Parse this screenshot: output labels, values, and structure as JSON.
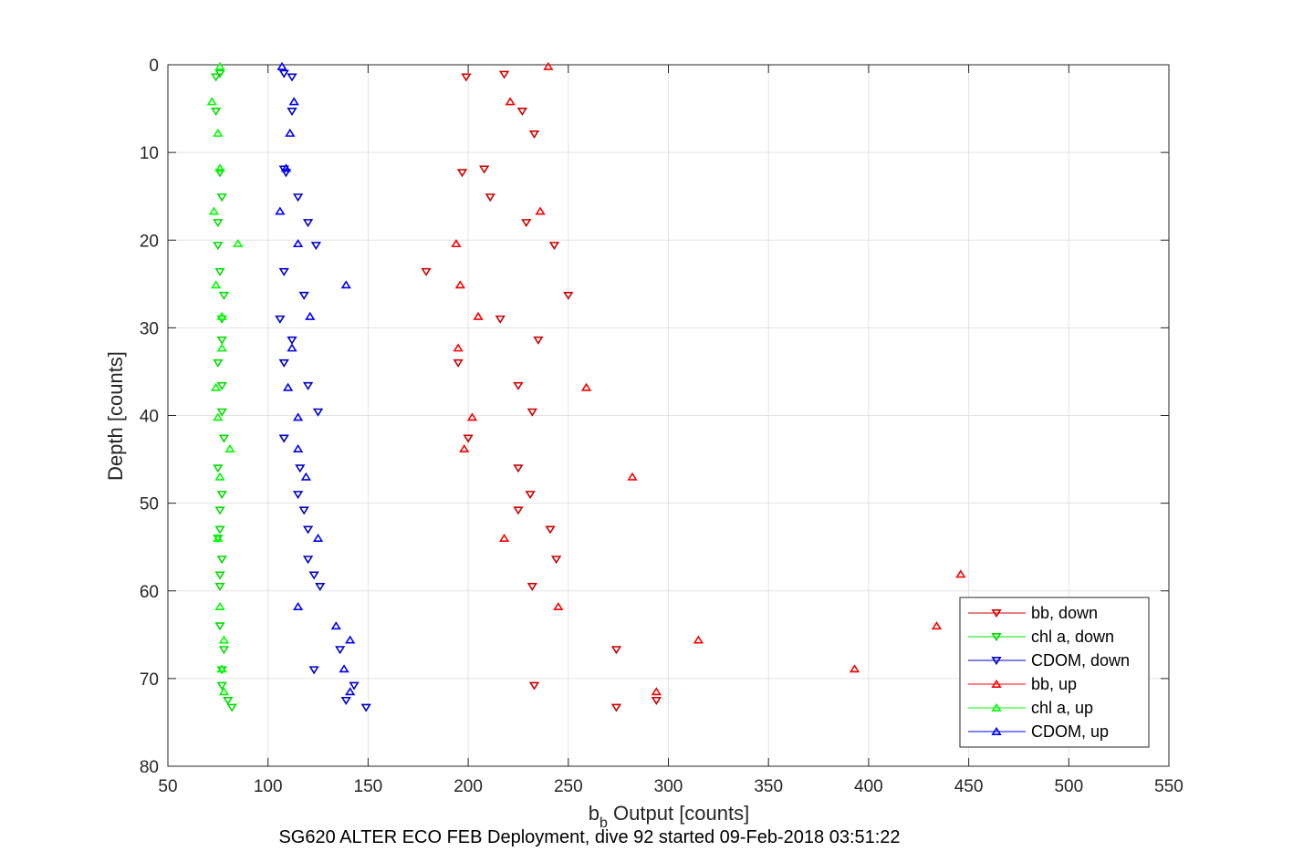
{
  "chart_data": {
    "type": "scatter",
    "title": "",
    "caption": "SG620 ALTER ECO FEB Deployment, dive 92 started 09-Feb-2018 03:51:22",
    "xlabel": {
      "main": "b",
      "sub": "b",
      "rest": " Output [counts]"
    },
    "ylabel": "Depth [counts]",
    "xlim": [
      50,
      550
    ],
    "ylim": [
      0,
      80
    ],
    "y_reversed": true,
    "grid": true,
    "legend_position": "bottom-right",
    "xticks": [
      "50",
      "100",
      "150",
      "200",
      "250",
      "300",
      "350",
      "400",
      "450",
      "500",
      "550"
    ],
    "yticks": [
      "0",
      "10",
      "20",
      "30",
      "40",
      "50",
      "60",
      "70",
      "80"
    ],
    "series": [
      {
        "name": "bb, down",
        "marker": "triangle-down",
        "color": "#d00000",
        "points": [
          [
            218,
            1.1
          ],
          [
            199,
            1.4
          ],
          [
            227,
            5.3
          ],
          [
            233,
            7.9
          ],
          [
            208,
            11.9
          ],
          [
            197,
            12.3
          ],
          [
            211,
            15.1
          ],
          [
            229,
            18
          ],
          [
            243,
            20.6
          ],
          [
            179,
            23.6
          ],
          [
            250,
            26.3
          ],
          [
            216,
            29
          ],
          [
            235,
            31.4
          ],
          [
            195,
            34
          ],
          [
            225,
            36.6
          ],
          [
            232,
            39.6
          ],
          [
            200,
            42.6
          ],
          [
            225,
            46
          ],
          [
            231,
            49
          ],
          [
            225,
            50.8
          ],
          [
            241,
            53
          ],
          [
            244,
            56.4
          ],
          [
            232,
            59.5
          ],
          [
            274,
            66.7
          ],
          [
            233,
            70.8
          ],
          [
            294,
            72.5
          ],
          [
            274,
            73.3
          ]
        ]
      },
      {
        "name": "chl a, down",
        "marker": "triangle-down",
        "color": "#00dd00",
        "points": [
          [
            76,
            1
          ],
          [
            74,
            1.4
          ],
          [
            74,
            5.3
          ],
          [
            76,
            12.3
          ],
          [
            77,
            15.1
          ],
          [
            75,
            18
          ],
          [
            75,
            20.6
          ],
          [
            76,
            23.6
          ],
          [
            78,
            26.3
          ],
          [
            77,
            29
          ],
          [
            77,
            31.4
          ],
          [
            75,
            34
          ],
          [
            77,
            36.6
          ],
          [
            77,
            39.6
          ],
          [
            78,
            42.6
          ],
          [
            75,
            46
          ],
          [
            77,
            49
          ],
          [
            76,
            50.8
          ],
          [
            76,
            53
          ],
          [
            75,
            54
          ],
          [
            77,
            56.4
          ],
          [
            76,
            58.2
          ],
          [
            76,
            59.5
          ],
          [
            76,
            64
          ],
          [
            78,
            66.7
          ],
          [
            77,
            69
          ],
          [
            77,
            70.8
          ],
          [
            80,
            72.5
          ],
          [
            82,
            73.3
          ]
        ]
      },
      {
        "name": "CDOM, down",
        "marker": "triangle-down",
        "color": "#0000cc",
        "points": [
          [
            108,
            1
          ],
          [
            112,
            1.4
          ],
          [
            112,
            5.3
          ],
          [
            108,
            11.9
          ],
          [
            109,
            12.3
          ],
          [
            115,
            15.1
          ],
          [
            120,
            18
          ],
          [
            124,
            20.6
          ],
          [
            108,
            23.6
          ],
          [
            118,
            26.3
          ],
          [
            106,
            29
          ],
          [
            112,
            31.4
          ],
          [
            108,
            34
          ],
          [
            120,
            36.6
          ],
          [
            125,
            39.6
          ],
          [
            108,
            42.6
          ],
          [
            116,
            46
          ],
          [
            115,
            49
          ],
          [
            118,
            50.8
          ],
          [
            120,
            53
          ],
          [
            120,
            56.4
          ],
          [
            123,
            58.2
          ],
          [
            126,
            59.5
          ],
          [
            136,
            66.7
          ],
          [
            123,
            69
          ],
          [
            143,
            70.8
          ],
          [
            139,
            72.5
          ],
          [
            149,
            73.3
          ]
        ]
      },
      {
        "name": "bb, up",
        "marker": "triangle-up",
        "color": "#ff0000",
        "points": [
          [
            240,
            0.2
          ],
          [
            221,
            4.2
          ],
          [
            236,
            16.7
          ],
          [
            194,
            20.4
          ],
          [
            196,
            25.1
          ],
          [
            205,
            28.7
          ],
          [
            195,
            32.3
          ],
          [
            259,
            36.8
          ],
          [
            202,
            40.2
          ],
          [
            198,
            43.8
          ],
          [
            282,
            47
          ],
          [
            218,
            54
          ],
          [
            446,
            58.1
          ],
          [
            245,
            61.8
          ],
          [
            434,
            64
          ],
          [
            315,
            65.6
          ],
          [
            393,
            68.9
          ],
          [
            294,
            71.5
          ]
        ]
      },
      {
        "name": "chl a, up",
        "marker": "triangle-up",
        "color": "#00ff00",
        "points": [
          [
            76,
            0.2
          ],
          [
            72,
            4.2
          ],
          [
            75,
            7.8
          ],
          [
            76,
            11.8
          ],
          [
            73,
            16.7
          ],
          [
            85,
            20.4
          ],
          [
            74,
            25.1
          ],
          [
            77,
            28.7
          ],
          [
            77,
            32.3
          ],
          [
            74,
            36.8
          ],
          [
            75,
            40.2
          ],
          [
            81,
            43.8
          ],
          [
            76,
            47
          ],
          [
            75,
            54
          ],
          [
            76,
            61.8
          ],
          [
            78,
            65.6
          ],
          [
            77,
            68.9
          ],
          [
            78,
            71.5
          ]
        ]
      },
      {
        "name": "CDOM, up",
        "marker": "triangle-up",
        "color": "#0000ff",
        "points": [
          [
            107,
            0.2
          ],
          [
            113,
            4.2
          ],
          [
            111,
            7.8
          ],
          [
            109,
            11.8
          ],
          [
            106,
            16.7
          ],
          [
            115,
            20.4
          ],
          [
            139,
            25.1
          ],
          [
            121,
            28.7
          ],
          [
            112,
            32.3
          ],
          [
            110,
            36.8
          ],
          [
            115,
            40.2
          ],
          [
            115,
            43.8
          ],
          [
            119,
            47
          ],
          [
            125,
            54
          ],
          [
            115,
            61.8
          ],
          [
            134,
            64
          ],
          [
            141,
            65.6
          ],
          [
            138,
            68.9
          ],
          [
            141,
            71.5
          ]
        ]
      }
    ]
  }
}
